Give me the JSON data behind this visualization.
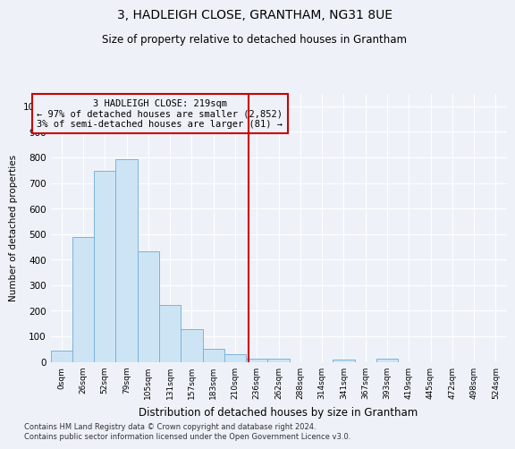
{
  "title": "3, HADLEIGH CLOSE, GRANTHAM, NG31 8UE",
  "subtitle": "Size of property relative to detached houses in Grantham",
  "xlabel": "Distribution of detached houses by size in Grantham",
  "ylabel": "Number of detached properties",
  "bar_color": "#cde4f5",
  "bar_edge_color": "#7ab3d9",
  "categories": [
    "0sqm",
    "26sqm",
    "52sqm",
    "79sqm",
    "105sqm",
    "131sqm",
    "157sqm",
    "183sqm",
    "210sqm",
    "236sqm",
    "262sqm",
    "288sqm",
    "314sqm",
    "341sqm",
    "367sqm",
    "393sqm",
    "419sqm",
    "445sqm",
    "472sqm",
    "498sqm",
    "524sqm"
  ],
  "values": [
    43,
    487,
    749,
    793,
    433,
    222,
    128,
    50,
    30,
    13,
    11,
    0,
    0,
    8,
    0,
    11,
    0,
    0,
    0,
    0,
    0
  ],
  "ylim": [
    0,
    1050
  ],
  "yticks": [
    0,
    100,
    200,
    300,
    400,
    500,
    600,
    700,
    800,
    900,
    1000
  ],
  "vline_x": 8.62,
  "vline_color": "#cc0000",
  "annotation_text": "3 HADLEIGH CLOSE: 219sqm\n← 97% of detached houses are smaller (2,852)\n3% of semi-detached houses are larger (81) →",
  "annotation_box_color": "#cc0000",
  "footer_text": "Contains HM Land Registry data © Crown copyright and database right 2024.\nContains public sector information licensed under the Open Government Licence v3.0.",
  "bg_color": "#eef2f8",
  "grid_color": "#ffffff"
}
